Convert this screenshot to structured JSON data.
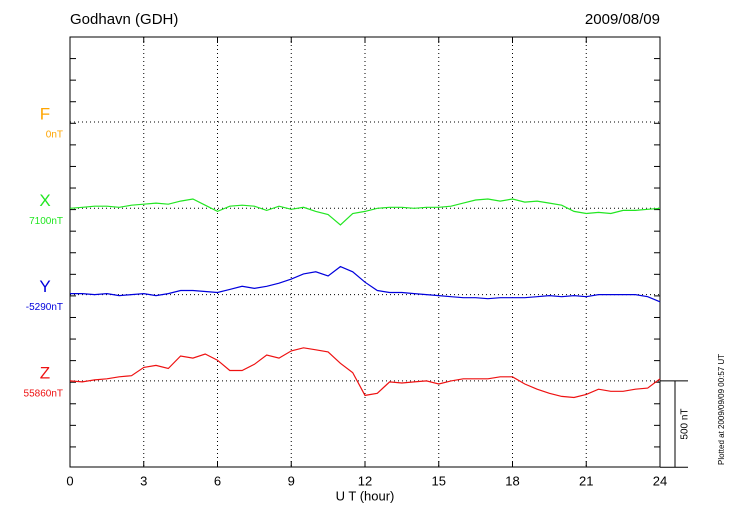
{
  "chart_data": {
    "type": "line",
    "title": "Godhavn (GDH)",
    "date": "2009/08/09",
    "note": "Plotted at 2009/09/09 00:57 UT",
    "x_label": "U T (hour)",
    "xlim": [
      0,
      24
    ],
    "xticks": [
      0,
      3,
      6,
      9,
      12,
      15,
      18,
      21,
      24
    ],
    "grid": true,
    "scale": {
      "value": 500,
      "label": "500 nT"
    },
    "x": [
      0,
      0.5,
      1,
      1.5,
      2,
      2.5,
      3,
      3.5,
      4,
      4.5,
      5,
      5.5,
      6,
      6.5,
      7,
      7.5,
      8,
      8.5,
      9,
      9.5,
      10,
      10.5,
      11,
      11.5,
      12,
      12.5,
      13,
      13.5,
      14,
      14.5,
      15,
      15.5,
      16,
      16.5,
      17,
      17.5,
      18,
      18.5,
      19,
      19.5,
      20,
      20.5,
      21,
      21.5,
      22,
      22.5,
      23,
      23.5,
      24
    ],
    "series": [
      {
        "name": "F",
        "color": "#ffa500",
        "baseline": {
          "value": 0,
          "label": "0nT"
        },
        "values": [
          null,
          null,
          null,
          null,
          null,
          null,
          null,
          null,
          null,
          null,
          null,
          null,
          null,
          null,
          null,
          null,
          null,
          null,
          null,
          null,
          null,
          null,
          null,
          null,
          null,
          null,
          null,
          null,
          null,
          null,
          null,
          null,
          null,
          null,
          null,
          null,
          null,
          null,
          null,
          null,
          null,
          null,
          null,
          null,
          null,
          null,
          null,
          null,
          null
        ]
      },
      {
        "name": "X",
        "color": "#22e622",
        "baseline": {
          "value": 7100,
          "label": "7100nT"
        },
        "values": [
          7100,
          7106,
          7112,
          7112,
          7106,
          7118,
          7124,
          7130,
          7124,
          7142,
          7154,
          7118,
          7082,
          7112,
          7118,
          7112,
          7088,
          7112,
          7094,
          7106,
          7082,
          7064,
          7004,
          7070,
          7082,
          7100,
          7106,
          7106,
          7100,
          7106,
          7106,
          7112,
          7130,
          7148,
          7154,
          7142,
          7154,
          7136,
          7142,
          7130,
          7118,
          7082,
          7070,
          7076,
          7070,
          7088,
          7088,
          7094,
          7100
        ]
      },
      {
        "name": "Y",
        "color": "#0000dd",
        "baseline": {
          "value": -5290,
          "label": "-5290nT"
        },
        "values": [
          -5284,
          -5284,
          -5290,
          -5284,
          -5296,
          -5290,
          -5284,
          -5296,
          -5284,
          -5266,
          -5266,
          -5272,
          -5278,
          -5260,
          -5242,
          -5254,
          -5242,
          -5224,
          -5200,
          -5170,
          -5158,
          -5182,
          -5128,
          -5158,
          -5218,
          -5266,
          -5278,
          -5278,
          -5284,
          -5290,
          -5296,
          -5302,
          -5308,
          -5308,
          -5314,
          -5308,
          -5308,
          -5308,
          -5302,
          -5296,
          -5302,
          -5296,
          -5302,
          -5290,
          -5290,
          -5290,
          -5290,
          -5302,
          -5332
        ]
      },
      {
        "name": "Z",
        "color": "#ee1111",
        "baseline": {
          "value": 55860,
          "label": "55860nT"
        },
        "values": [
          55860,
          55854,
          55866,
          55872,
          55884,
          55890,
          55938,
          55950,
          55932,
          56004,
          55992,
          56016,
          55980,
          55920,
          55920,
          55956,
          56010,
          55992,
          56034,
          56052,
          56040,
          56028,
          55962,
          55908,
          55776,
          55788,
          55854,
          55848,
          55854,
          55860,
          55842,
          55860,
          55872,
          55872,
          55872,
          55884,
          55884,
          55842,
          55812,
          55788,
          55770,
          55764,
          55782,
          55812,
          55800,
          55800,
          55812,
          55818,
          55872
        ]
      }
    ]
  }
}
